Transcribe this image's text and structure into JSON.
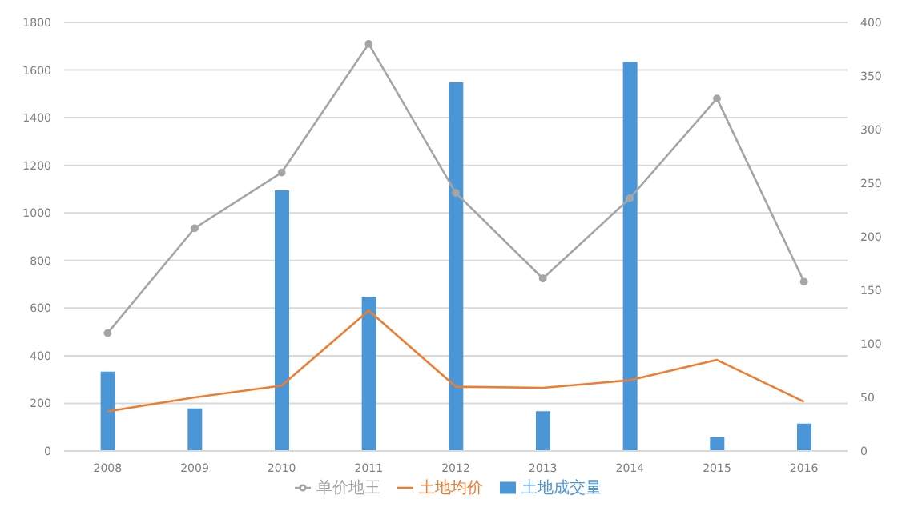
{
  "chart_data": {
    "type": "bar",
    "categories": [
      "2008",
      "2009",
      "2010",
      "2011",
      "2012",
      "2013",
      "2014",
      "2015",
      "2016"
    ],
    "series": [
      {
        "name": "土地成交量",
        "color": "#4a96d6",
        "values": [
          333,
          179,
          1095,
          647,
          1548,
          167,
          1634,
          58,
          115
        ]
      },
      {
        "name": "土地均价",
        "type": "line",
        "axis": "y2",
        "marker": "none",
        "color": "#ed7d31",
        "values": [
          37,
          50,
          61,
          131,
          60,
          59,
          66,
          85,
          46
        ]
      },
      {
        "name": "单价地王",
        "type": "line",
        "axis": "y2",
        "marker": "circle",
        "color": "#a5a5a5",
        "values": [
          110,
          208,
          260,
          380,
          241,
          161,
          236,
          329,
          158
        ]
      }
    ],
    "ylim": [
      0,
      1800
    ],
    "yticks": [
      0,
      200,
      400,
      600,
      800,
      1000,
      1200,
      1400,
      1600,
      1800
    ],
    "y2lim": [
      0,
      400
    ],
    "y2ticks": [
      0,
      50,
      100,
      150,
      200,
      250,
      300,
      350,
      400
    ],
    "grid": "y",
    "legend": "bottom"
  }
}
